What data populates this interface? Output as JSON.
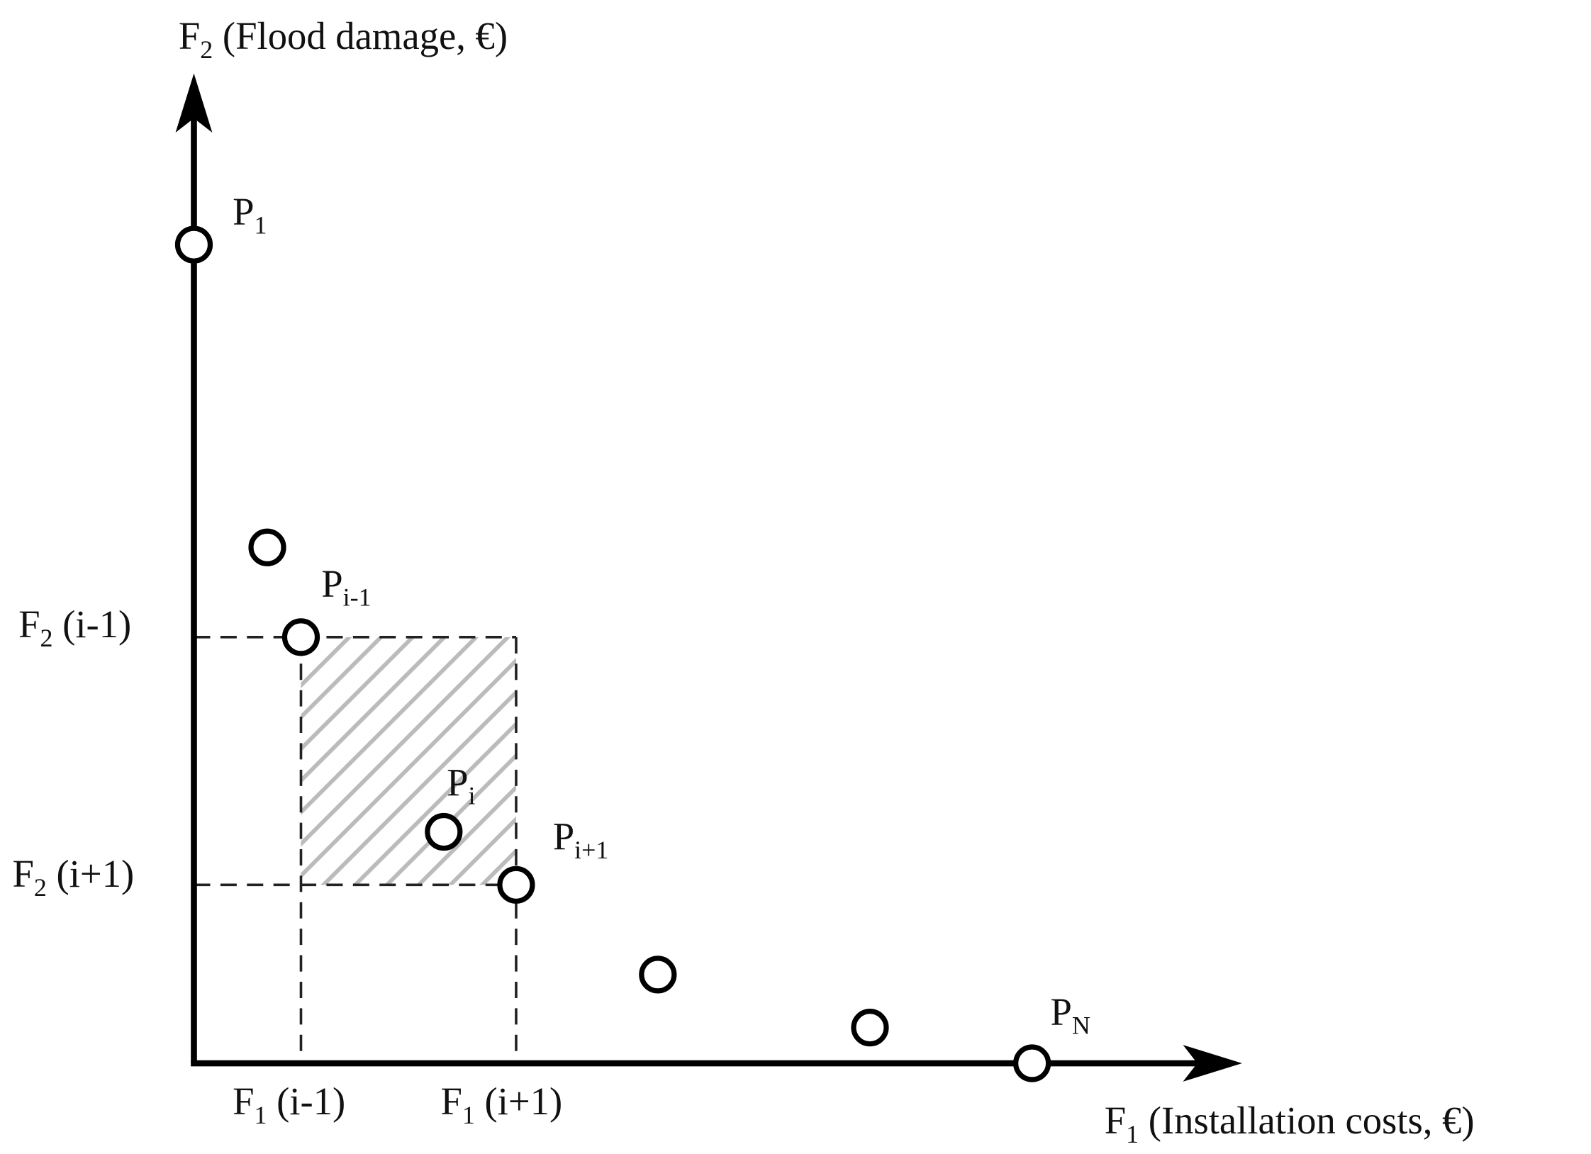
{
  "axes": {
    "y_label": {
      "text": "F",
      "sub": "2",
      "rest": " (Flood damage, €)"
    },
    "x_label": {
      "text": "F",
      "sub": "1",
      "rest": " (Installation costs, €)"
    }
  },
  "y_ticks": [
    {
      "text": "F",
      "sub": "2",
      "rest": " (i-1)"
    },
    {
      "text": "F",
      "sub": "2",
      "rest": " (i+1)"
    }
  ],
  "x_ticks": [
    {
      "text": "F",
      "sub": "1",
      "rest": " (i-1)"
    },
    {
      "text": "F",
      "sub": "1",
      "rest": " (i+1)"
    }
  ],
  "points": [
    {
      "text": "P",
      "sub": "1"
    },
    {
      "text": "P",
      "sub": "i-1"
    },
    {
      "text": "P",
      "sub": "i"
    },
    {
      "text": "P",
      "sub": "i+1"
    },
    {
      "text": "P",
      "sub": "N"
    }
  ]
}
